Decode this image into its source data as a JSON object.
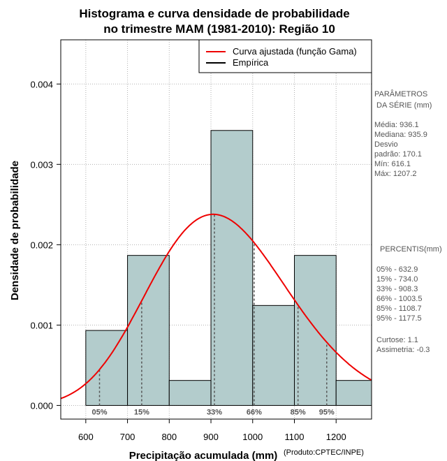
{
  "chart_data": {
    "type": "bar",
    "title_lines": [
      "Histograma e curva densidade de probabilidade",
      "no trimestre MAM (1981-2010): Região 10"
    ],
    "xlabel": "Precipitação acumulada (mm)",
    "ylabel": "Densidade de probabilidade",
    "credit": "(Produto:CPTEC/INPE)",
    "xlim": [
      540,
      1285
    ],
    "ylim": [
      -0.00017,
      0.00455
    ],
    "x_ticks": [
      600,
      700,
      800,
      900,
      1000,
      1100,
      1200
    ],
    "y_ticks": [
      0.0,
      0.001,
      0.002,
      0.003,
      0.004
    ],
    "y_tick_labels": [
      "0.000",
      "0.001",
      "0.002",
      "0.003",
      "0.004"
    ],
    "grid": true,
    "bins": [
      {
        "start": 600,
        "end": 700,
        "density": 0.000933
      },
      {
        "start": 700,
        "end": 800,
        "density": 0.001867
      },
      {
        "start": 800,
        "end": 900,
        "density": 0.000311
      },
      {
        "start": 900,
        "end": 1000,
        "density": 0.003422
      },
      {
        "start": 1000,
        "end": 1100,
        "density": 0.001244
      },
      {
        "start": 1100,
        "end": 1200,
        "density": 0.001867
      },
      {
        "start": 1200,
        "end": 1300,
        "density": 0.000311
      }
    ],
    "curve": {
      "name": "Curva ajustada (função Gama)",
      "shape": 30.3,
      "scale": 30.9,
      "color": "#ee0000"
    },
    "percentile_markers": [
      {
        "label": "05%",
        "value": 632.9
      },
      {
        "label": "15%",
        "value": 734.0
      },
      {
        "label": "33%",
        "value": 908.3
      },
      {
        "label": "66%",
        "value": 1003.5
      },
      {
        "label": "85%",
        "value": 1108.7
      },
      {
        "label": "95%",
        "value": 1177.5
      }
    ],
    "legend": [
      {
        "label": "Curva ajustada (função Gama)",
        "color": "#ee0000"
      },
      {
        "label": "Empírica",
        "color": "#000000"
      }
    ],
    "legend_position": "top-right",
    "bar_color": "#b3cccc"
  },
  "side_panel": {
    "params_title_1": "PARÂMETROS",
    "params_title_2": "DA SÉRIE (mm)",
    "stats": [
      "Média:  936.1",
      "Mediana:  935.9",
      "Desvio",
      "padrão:  170.1",
      "Mín:  616.1",
      "Máx:  1207.2"
    ],
    "percentis_title": "PERCENTIS(mm)",
    "percentis": [
      "05% -  632.9",
      "15% -  734.0",
      "33% -  908.3",
      "66% -  1003.5",
      "85% -  1108.7",
      "95% -  1177.5"
    ],
    "shape_stats": [
      "Curtose:  1.1",
      "Assimetria:  -0.3"
    ]
  }
}
